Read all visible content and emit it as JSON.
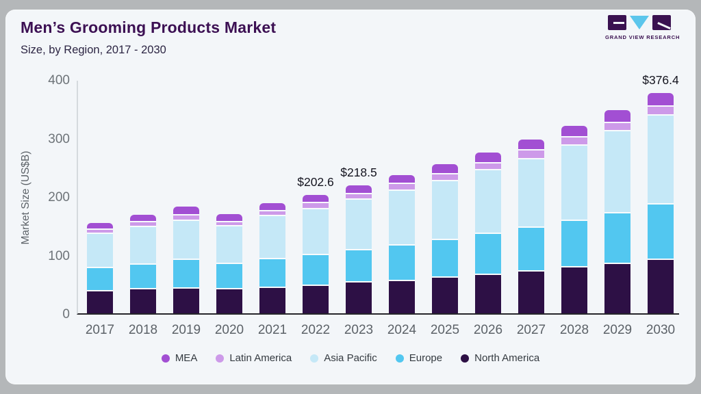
{
  "header": {
    "title": "Men’s Grooming Products Market",
    "subtitle": "Size, by Region, 2017 - 2030"
  },
  "logo": {
    "text": "GRAND VIEW RESEARCH",
    "mark_color": "#3a1150",
    "triangle_color": "#5cc6ec"
  },
  "colors": {
    "card_background": "#f3f6f9",
    "frame_background": "#b4b7b9",
    "title_text": "#3c1053",
    "axis_text": "#6d7378",
    "x_axis_line": "#26262b",
    "y_axis_line": "#d5dade"
  },
  "chart_data": {
    "type": "bar",
    "stacked": true,
    "title": "Men’s Grooming Products Market",
    "subtitle": "Size, by Region, 2017 - 2030",
    "xlabel": "",
    "ylabel": "Market Size (US$B)",
    "ylim": [
      0,
      400
    ],
    "yticks": [
      0,
      100,
      200,
      300,
      400
    ],
    "grid": false,
    "legend_position": "bottom",
    "categories": [
      "2017",
      "2018",
      "2019",
      "2020",
      "2021",
      "2022",
      "2023",
      "2024",
      "2025",
      "2026",
      "2027",
      "2028",
      "2029",
      "2030"
    ],
    "series_bottom_to_top": [
      {
        "name": "North America",
        "color": "#2d1045",
        "values": [
          40,
          43,
          45,
          43,
          45.5,
          49.5,
          54.5,
          57.5,
          63,
          68,
          73.5,
          80.5,
          86,
          93.4
        ]
      },
      {
        "name": "Europe",
        "color": "#52c7f0",
        "values": [
          40,
          43,
          49,
          43.5,
          49,
          52.6,
          55.5,
          61,
          64.5,
          69.5,
          75,
          80,
          87,
          94.5
        ]
      },
      {
        "name": "Asia Pacific",
        "color": "#c5e8f7",
        "values": [
          58,
          63.5,
          66.5,
          64,
          74,
          78.5,
          86.5,
          93,
          101,
          109,
          117.5,
          128,
          140.5,
          153
        ]
      },
      {
        "name": "Latin America",
        "color": "#cd9ae9",
        "values": [
          7,
          8,
          9,
          7.5,
          8,
          10,
          9.5,
          11.5,
          11.5,
          12.5,
          14.5,
          14.5,
          13.5,
          15
        ]
      },
      {
        "name": "MEA",
        "color": "#a24fd3",
        "values": [
          9.5,
          11.5,
          13.5,
          12,
          11.5,
          12,
          12.5,
          13,
          14.5,
          16,
          16.5,
          18,
          20,
          20.5
        ]
      }
    ],
    "totals": [
      154.5,
      169,
      183,
      170,
      188,
      202.6,
      218.5,
      236,
      254.5,
      275,
      297,
      321,
      347,
      376.4
    ],
    "annotations": [
      {
        "category": "2022",
        "text": "$202.6"
      },
      {
        "category": "2023",
        "text": "$218.5"
      },
      {
        "category": "2030",
        "text": "$376.4"
      }
    ],
    "legend": [
      {
        "label": "MEA",
        "color": "#a24fd3"
      },
      {
        "label": "Latin America",
        "color": "#cd9ae9"
      },
      {
        "label": "Asia Pacific",
        "color": "#c5e8f7"
      },
      {
        "label": "Europe",
        "color": "#52c7f0"
      },
      {
        "label": "North America",
        "color": "#2d1045"
      }
    ]
  }
}
